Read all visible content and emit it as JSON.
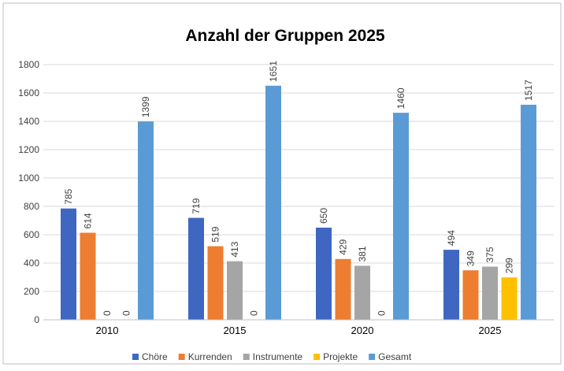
{
  "chart_data": {
    "type": "bar",
    "title": "Anzahl der Gruppen 2025",
    "categories": [
      "2010",
      "2015",
      "2020",
      "2025"
    ],
    "series": [
      {
        "name": "Chöre",
        "color": "#3f67c2",
        "values": [
          785,
          719,
          650,
          494
        ]
      },
      {
        "name": "Kurrenden",
        "color": "#ed7d31",
        "values": [
          614,
          519,
          429,
          349
        ]
      },
      {
        "name": "Instrumente",
        "color": "#a5a5a5",
        "values": [
          0,
          413,
          381,
          375
        ]
      },
      {
        "name": "Projekte",
        "color": "#ffc000",
        "values": [
          0,
          0,
          0,
          299
        ]
      },
      {
        "name": "Gesamt",
        "color": "#5b9bd5",
        "values": [
          1399,
          1651,
          1460,
          1517
        ]
      }
    ],
    "ylim": [
      0,
      1800
    ],
    "yticks": [
      0,
      200,
      400,
      600,
      800,
      1000,
      1200,
      1400,
      1600,
      1800
    ],
    "grid": true,
    "legend": "bottom"
  }
}
